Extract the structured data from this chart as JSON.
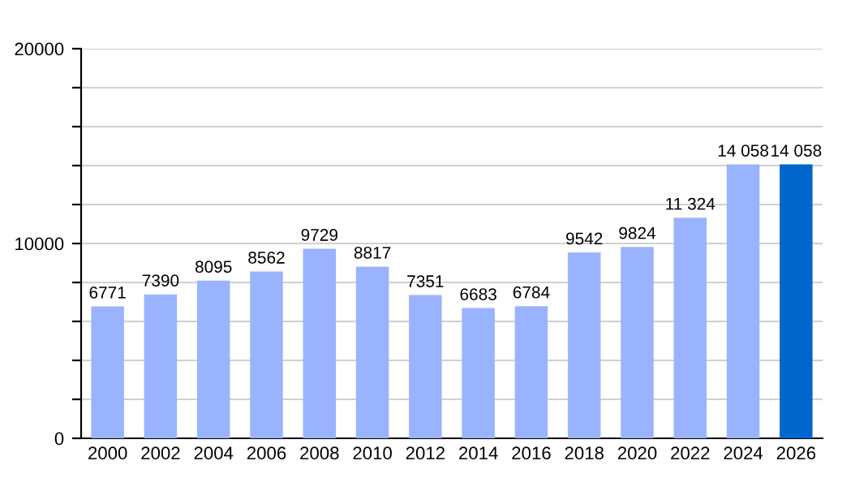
{
  "chart_data": {
    "type": "bar",
    "categories": [
      "2000",
      "2002",
      "2004",
      "2006",
      "2008",
      "2010",
      "2012",
      "2014",
      "2016",
      "2018",
      "2020",
      "2022",
      "2024",
      "2026"
    ],
    "values": [
      6771,
      7390,
      8095,
      8562,
      9729,
      8817,
      7351,
      6683,
      6784,
      9542,
      9824,
      11324,
      14058,
      14058
    ],
    "colors": [
      "#99b3ff",
      "#99b3ff",
      "#99b3ff",
      "#99b3ff",
      "#99b3ff",
      "#99b3ff",
      "#99b3ff",
      "#99b3ff",
      "#99b3ff",
      "#99b3ff",
      "#99b3ff",
      "#99b3ff",
      "#99b3ff",
      "#0066cc"
    ],
    "value_labels": [
      "6771",
      "7390",
      "8095",
      "8562",
      "9729",
      "8817",
      "7351",
      "6683",
      "6784",
      "9542",
      "9824",
      "11 324",
      "14 058",
      "14 058"
    ],
    "ylim": [
      0,
      20000
    ],
    "yticks": [
      0,
      {
        "value": 2000,
        "label": null
      },
      {
        "value": 4000,
        "label": null
      },
      {
        "value": 6000,
        "label": null
      },
      {
        "value": 8000,
        "label": null
      },
      10000,
      {
        "value": 12000,
        "label": null
      },
      {
        "value": 14000,
        "label": null
      },
      {
        "value": 16000,
        "label": null
      },
      {
        "value": 18000,
        "label": null
      },
      20000
    ],
    "grid": "y",
    "legend": false
  }
}
